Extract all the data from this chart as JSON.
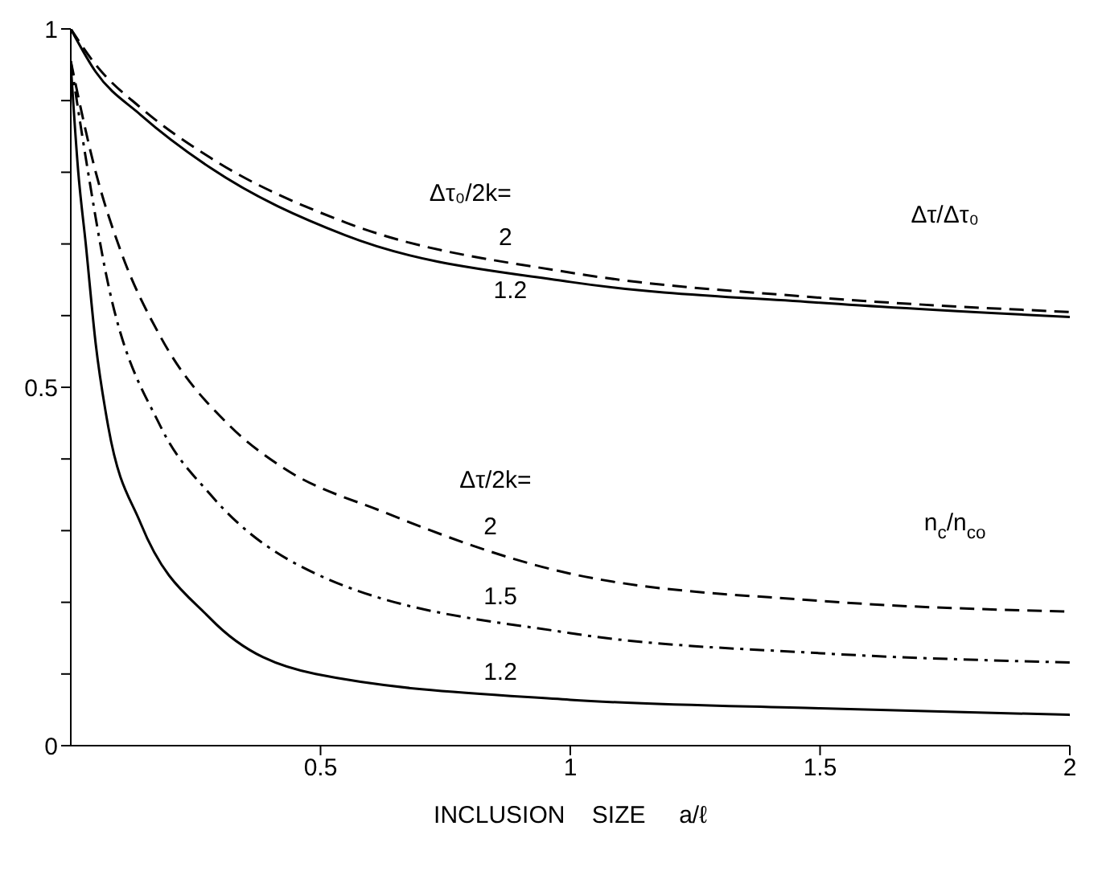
{
  "chart_data": {
    "type": "line",
    "xlabel": "INCLUSION    SIZE     a/ℓ",
    "xlim": [
      0,
      2
    ],
    "ylim": [
      0,
      1
    ],
    "xticks": [
      0.5,
      1,
      1.5,
      2
    ],
    "yticks": [
      0,
      {
        "value": 0.1,
        "label": null
      },
      {
        "value": 0.2,
        "label": null
      },
      {
        "value": 0.3,
        "label": null
      },
      {
        "value": 0.4,
        "label": null
      },
      0.5,
      {
        "value": 0.6,
        "label": null
      },
      {
        "value": 0.7,
        "label": null
      },
      {
        "value": 0.8,
        "label": null
      },
      {
        "value": 0.9,
        "label": null
      },
      1
    ],
    "marker": "none",
    "series": [
      {
        "name": "2",
        "color": "#000000",
        "line_style": "dashed",
        "x": [
          0,
          0.05,
          0.14,
          0.28,
          0.55,
          1,
          1.5,
          2
        ],
        "values": [
          1,
          0.95,
          0.89,
          0.82,
          0.73,
          0.66,
          0.625,
          0.605
        ]
      },
      {
        "name": "1.2",
        "color": "#000000",
        "line_style": "solid",
        "x": [
          0,
          0.05,
          0.14,
          0.28,
          0.55,
          1,
          1.5,
          2
        ],
        "values": [
          1,
          0.94,
          0.88,
          0.806,
          0.712,
          0.647,
          0.618,
          0.598
        ]
      },
      {
        "name": "2",
        "color": "#000000",
        "line_style": "dashed",
        "x": [
          0,
          0.05,
          0.1,
          0.18,
          0.32,
          0.42,
          0.63,
          1,
          1.5,
          2
        ],
        "values": [
          0.955,
          0.8,
          0.69,
          0.57,
          0.445,
          0.39,
          0.325,
          0.24,
          0.202,
          0.187
        ]
      },
      {
        "name": "1.5",
        "color": "#000000",
        "line_style": "dashdot",
        "x": [
          0,
          0.03,
          0.07,
          0.18,
          0.28,
          0.49,
          1,
          1.5,
          2
        ],
        "values": [
          0.955,
          0.82,
          0.66,
          0.445,
          0.35,
          0.24,
          0.157,
          0.129,
          0.116
        ]
      },
      {
        "name": "1.2",
        "color": "#000000",
        "line_style": "solid",
        "x": [
          0,
          0.015,
          0.03,
          0.05,
          0.075,
          0.14,
          0.28,
          0.49,
          1,
          1.5,
          2
        ],
        "values": [
          0.95,
          0.8,
          0.7,
          0.56,
          0.445,
          0.31,
          0.177,
          0.1,
          0.064,
          0.052,
          0.043
        ]
      }
    ],
    "annotations": [
      "Δτ₀/2k=",
      "Δτ/Δτ₀",
      "Δτ/2k=",
      "n$_{c}$/n$_{co}$"
    ]
  }
}
